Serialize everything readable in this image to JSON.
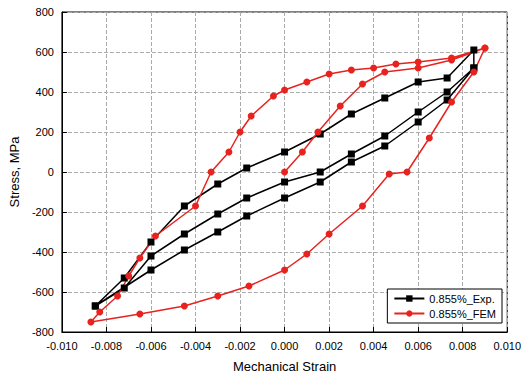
{
  "chart_data": {
    "type": "line",
    "x_label": "Mechanical Strain",
    "y_label": "Stress, MPa",
    "xlim": [
      -0.01,
      0.01
    ],
    "xticks": [
      {
        "value": -0.01,
        "label": "-0.010"
      },
      {
        "value": -0.008,
        "label": "-0.008"
      },
      {
        "value": -0.006,
        "label": "-0.006"
      },
      {
        "value": -0.004,
        "label": "-0.004"
      },
      {
        "value": -0.002,
        "label": "-0.002"
      },
      {
        "value": 0,
        "label": "0.000"
      },
      {
        "value": 0.002,
        "label": "0.002"
      },
      {
        "value": 0.004,
        "label": "0.004"
      },
      {
        "value": 0.006,
        "label": "0.006"
      },
      {
        "value": 0.008,
        "label": "0.008"
      },
      {
        "value": 0.01,
        "label": "0.010"
      }
    ],
    "ylim": [
      -800,
      800
    ],
    "yticks": [
      -800,
      -600,
      -400,
      -200,
      0,
      200,
      400,
      600,
      800
    ],
    "grid": true,
    "legend": "lower right",
    "series": [
      {
        "name": "0.855%_Exp.",
        "color": "#000000",
        "marker": "square",
        "x": [
          -0.0085,
          -0.0072,
          -0.006,
          -0.0045,
          -0.003,
          -0.0017,
          0,
          0.0016,
          0.003,
          0.0045,
          0.006,
          0.0073,
          0.0085,
          0.0085,
          0.0073,
          0.006,
          0.0045,
          0.003,
          0.0016,
          0,
          -0.0017,
          -0.003,
          -0.0045,
          -0.006,
          -0.0072,
          -0.0085,
          -0.006,
          -0.0045,
          -0.003,
          -0.0017,
          0,
          0.0016,
          0.003,
          0.0045,
          0.006,
          0.0073,
          0.0085
        ],
        "values": [
          -670,
          -530,
          -350,
          -170,
          -60,
          20,
          100,
          190,
          290,
          370,
          450,
          470,
          610,
          520,
          400,
          300,
          180,
          90,
          0,
          -50,
          -130,
          -210,
          -310,
          -420,
          -580,
          -670,
          -490,
          -390,
          -300,
          -220,
          -130,
          -50,
          50,
          130,
          250,
          360,
          520
        ]
      },
      {
        "name": "0.855%_FEM",
        "color": "#e8231f",
        "marker": "circle",
        "x": [
          0,
          0.0008,
          0.0015,
          0.0025,
          0.0035,
          0.0045,
          0.006,
          0.0075,
          0.009,
          0.0085,
          0.0075,
          0.0065,
          0.0055,
          0.0047,
          0.0035,
          0.002,
          0.001,
          0,
          -0.0016,
          -0.003,
          -0.0045,
          -0.0065,
          -0.0087,
          -0.0083,
          -0.0075,
          -0.007,
          -0.0065,
          -0.0058,
          -0.004,
          -0.0033,
          -0.0025,
          -0.002,
          -0.0015,
          -0.0005,
          0,
          0.001,
          0.002,
          0.003,
          0.004,
          0.005,
          0.006,
          0.0075,
          0.009
        ],
        "values": [
          0,
          100,
          200,
          330,
          440,
          500,
          520,
          560,
          620,
          500,
          350,
          170,
          0,
          -10,
          -170,
          -310,
          -410,
          -490,
          -570,
          -620,
          -670,
          -710,
          -750,
          -700,
          -620,
          -520,
          -430,
          -320,
          -170,
          0,
          100,
          200,
          280,
          380,
          410,
          450,
          490,
          510,
          520,
          540,
          550,
          570,
          620
        ]
      }
    ]
  }
}
